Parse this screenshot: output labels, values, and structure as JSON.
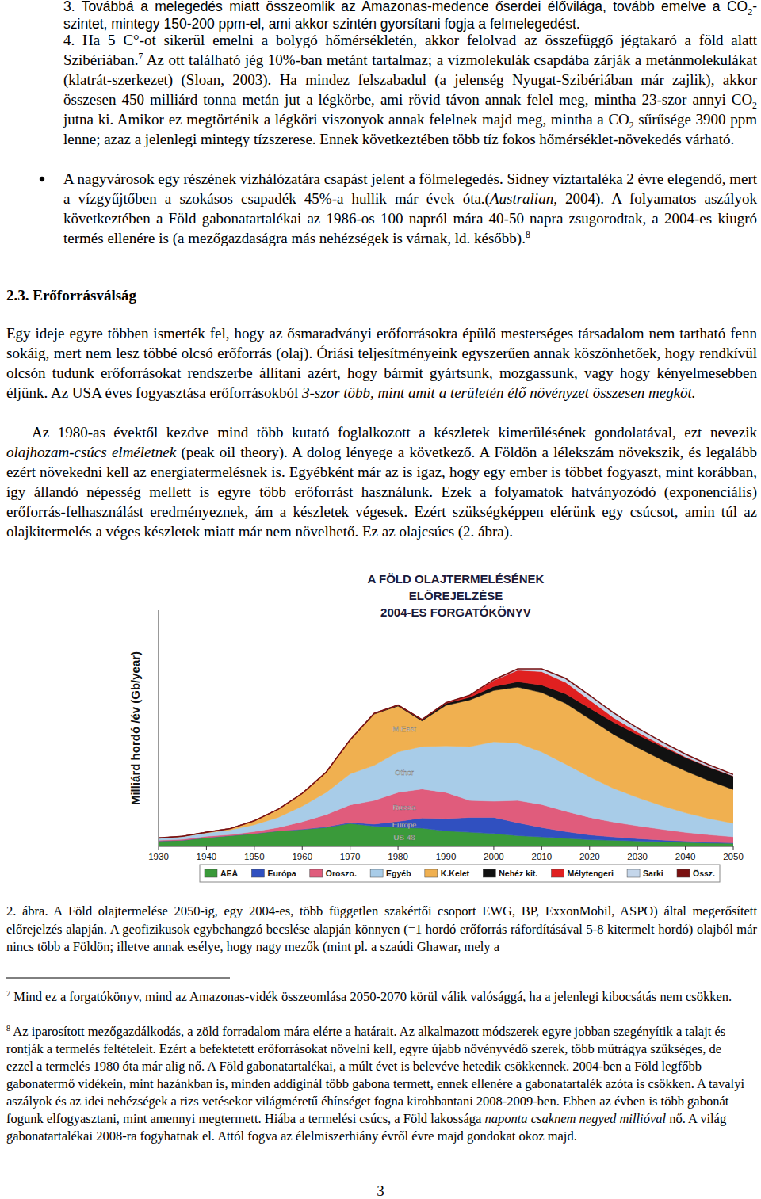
{
  "list_items": [
    {
      "runs": [
        {
          "text": "3. Továbbá a melegedés miatt összeomlik az Amazonas-medence őserdei élővilága, tovább emelve a CO"
        },
        {
          "text": "2",
          "format": "sub"
        },
        {
          "text": "-szintet, mintegy 150-200 ppm-el, ami akkor szintén gyorsítani fogja a felmelegedést."
        }
      ]
    },
    {
      "runs": [
        {
          "text": "4. Ha 5 C°-ot sikerül emelni a bolygó hőmérsékletén, akkor felolvad az összefüggő jégtakaró a föld alatt Szibériában."
        },
        {
          "text": "7",
          "format": "sup"
        },
        {
          "text": " Az ott található jég 10%-ban metánt tartalmaz; a vízmolekulák csapdába zárják a metánmolekulákat (klatrát-szerkezet) (Sloan, 2003). Ha mindez felszabadul (a jelenség Nyugat-Szibériában már zajlik), akkor összesen 450 milliárd tonna metán jut a légkörbe, ami rövid távon annak felel meg, mintha 23-szor annyi CO"
        },
        {
          "text": "2",
          "format": "sub"
        },
        {
          "text": " jutna ki. Amikor ez megtörténik a légköri viszonyok annak felelnek majd meg, mintha a CO"
        },
        {
          "text": "2",
          "format": "sub"
        },
        {
          "text": " sűrűsége 3900 ppm lenne; azaz a jelenlegi mintegy tízszerese. Ennek következtében több tíz fokos hőmérséklet-növekedés várható."
        }
      ]
    }
  ],
  "bullets": [
    {
      "runs": [
        {
          "text": "A nagyvárosok egy részének vízhálózatára csapást jelent a fölmelegedés. Sidney víztartaléka 2 évre elegendő, mert a vízgyűjtőben a szokásos csapadék 45%-a hullik már évek óta.("
        },
        {
          "text": "Australian",
          "format": "italic"
        },
        {
          "text": ", 2004). A folyamatos aszályok következtében a Föld gabonatartalékai az 1986-os 100 napról mára 40-50 napra zsugorodtak, a 2004-es kiugró termés ellenére is (a mezőgazdaságra más nehézségek is várnak, ld. később)."
        },
        {
          "text": "8",
          "format": "sup"
        }
      ]
    }
  ],
  "heading": "2.3. Erőforrásválság",
  "paragraphs": [
    {
      "runs": [
        {
          "text": "Egy ideje egyre többen ismerték fel, hogy az ősmaradványi erőforrásokra épülő mesterséges társadalom nem tartható fenn sokáig, mert nem lesz többé olcsó erőforrás (olaj). Óriási teljesítményeink egyszerűen annak köszönhetőek, hogy rendkívül olcsón tudunk erőforrásokat rendszerbe állítani azért, hogy bármit gyártsunk, mozgassunk, vagy hogy kényelmesebben éljünk. Az USA éves fogyasztása erőforrásokból "
        },
        {
          "text": "3-szor több, mint amit a területén élő növényzet összesen megköt.",
          "format": "italic"
        }
      ]
    },
    {
      "runs": [
        {
          "text": "Az 1980-as évektől kezdve mind több kutató foglalkozott a készletek kimerülésének gondolatával, ezt nevezik "
        },
        {
          "text": "olajhozam-csúcs elméletnek",
          "format": "italic"
        },
        {
          "text": " (peak oil theory). A dolog lényege a következő. A Földön a lélekszám növekszik, és legalább ezért növekedni kell az energiatermelésnek is. Egyébként már az is igaz, hogy egy ember is többet fogyaszt, mint korábban, így állandó népesség mellett is egyre több erőforrást használunk. Ezek a folyamatok hatványozódó (exponenciális) erőforrás-felhasználást eredményeznek, ám a készletek végesek. Ezért szükségképpen elérünk egy csúcsot, amin túl az olajkitermelés a véges készletek miatt már nem növelhető. Ez az olajcsúcs (2. ábra)."
        }
      ]
    }
  ],
  "chart_data": {
    "type": "area",
    "stacked": true,
    "title": "A FÖLD OLAJTERMELÉSÉNEK\nELŐREJELZÉSE\n2004-ES FORGATÓKÖNYV",
    "y_label": "Milliárd hordó /év (Gb/year)",
    "x": [
      1930,
      1935,
      1940,
      1945,
      1950,
      1955,
      1960,
      1965,
      1970,
      1975,
      1980,
      1985,
      1990,
      1995,
      2000,
      2005,
      2010,
      2015,
      2020,
      2025,
      2030,
      2035,
      2040,
      2045,
      2050
    ],
    "xlim": [
      1930,
      2050
    ],
    "xticks": [
      1930,
      1940,
      1950,
      1960,
      1970,
      1980,
      1990,
      2000,
      2010,
      2020,
      2030,
      2040,
      2050
    ],
    "ylim": [
      0,
      35
    ],
    "tick_labels": "x",
    "legend": "bottom",
    "annotations": [
      "US-48",
      "Europe",
      "Russia",
      "Other",
      "M.East"
    ],
    "series": [
      {
        "name": "AEÁ",
        "color": "#3a9a3a",
        "values": [
          0.8,
          0.9,
          1.3,
          1.6,
          1.9,
          2.3,
          2.5,
          2.8,
          3.4,
          3.0,
          2.8,
          2.7,
          2.3,
          2.1,
          1.9,
          1.6,
          1.4,
          1.2,
          1.0,
          0.9,
          0.8,
          0.7,
          0.6,
          0.5,
          0.45
        ]
      },
      {
        "name": "Európa",
        "color": "#3050c0",
        "values": [
          0,
          0,
          0,
          0,
          0,
          0,
          0.05,
          0.1,
          0.15,
          0.3,
          0.9,
          1.5,
          1.8,
          2.2,
          2.4,
          1.9,
          1.4,
          1.0,
          0.7,
          0.5,
          0.35,
          0.25,
          0.18,
          0.12,
          0.08
        ]
      },
      {
        "name": "Oroszo.",
        "color": "#e05c7c",
        "values": [
          0.1,
          0.15,
          0.2,
          0.15,
          0.3,
          0.5,
          1.1,
          1.8,
          2.6,
          3.5,
          4.3,
          4.3,
          3.9,
          2.5,
          2.4,
          3.3,
          3.4,
          3.0,
          2.6,
          2.2,
          1.9,
          1.6,
          1.3,
          1.1,
          0.9
        ]
      },
      {
        "name": "Egyéb",
        "color": "#a8cce8",
        "values": [
          0.3,
          0.4,
          0.5,
          0.7,
          1.0,
          1.5,
          2.3,
          3.3,
          4.6,
          5.2,
          6.0,
          6.3,
          6.9,
          8.0,
          8.8,
          8.5,
          7.8,
          7.0,
          6.0,
          5.0,
          4.2,
          3.5,
          2.9,
          2.4,
          2.0
        ]
      },
      {
        "name": "K.Kelet",
        "color": "#f0b050",
        "values": [
          0.05,
          0.05,
          0.1,
          0.2,
          0.6,
          1.2,
          1.9,
          3.0,
          5.0,
          7.6,
          6.8,
          3.8,
          6.0,
          6.9,
          7.6,
          8.3,
          8.8,
          9.0,
          8.6,
          8.0,
          7.4,
          6.8,
          6.2,
          5.6,
          5.0
        ]
      },
      {
        "name": "Nehéz kit.",
        "color": "#111111",
        "values": [
          0,
          0,
          0,
          0,
          0,
          0,
          0,
          0,
          0.05,
          0.1,
          0.15,
          0.2,
          0.3,
          0.4,
          0.6,
          0.8,
          1.1,
          1.4,
          1.6,
          1.8,
          1.9,
          2.0,
          2.0,
          2.0,
          2.0
        ]
      },
      {
        "name": "Mélytengeri",
        "color": "#e02020",
        "values": [
          0,
          0,
          0,
          0,
          0,
          0,
          0,
          0,
          0,
          0,
          0,
          0,
          0.1,
          0.3,
          0.9,
          1.7,
          2.0,
          1.7,
          1.2,
          0.7,
          0.4,
          0.2,
          0.1,
          0.05,
          0.02
        ]
      },
      {
        "name": "Sarki",
        "color": "#c4d6ea",
        "values": [
          0,
          0,
          0,
          0,
          0,
          0,
          0,
          0,
          0,
          0,
          0,
          0,
          0,
          0,
          0.1,
          0.2,
          0.4,
          0.6,
          0.7,
          0.7,
          0.6,
          0.5,
          0.4,
          0.3,
          0.2
        ]
      },
      {
        "name": "Össz.",
        "color": "#7a1010",
        "type": "line",
        "values": [
          1.25,
          1.5,
          2.1,
          2.65,
          3.8,
          5.5,
          7.85,
          11.0,
          15.8,
          19.7,
          20.95,
          18.8,
          21.3,
          22.4,
          24.7,
          26.3,
          26.3,
          24.9,
          22.4,
          19.8,
          17.55,
          15.55,
          13.68,
          12.07,
          10.65
        ]
      }
    ]
  },
  "caption": {
    "runs": [
      {
        "text": "2. ábra. A Föld olajtermelése 2050-ig, egy 2004-es, több független szakértői csoport EWG, BP, ExxonMobil, ASPO) által megerősített előrejelzés alapján. A geofizikusok egybehangzó becslése alapján könnyen (=1 hordó erőforrás ráfordításával 5-8 kitermelt hordó) olajból már nincs több a Földön; illetve annak esélye, hogy nagy mezők (mint pl. a szaúdi Ghawar, mely a"
      }
    ]
  },
  "footnotes": [
    {
      "number": "7",
      "runs": [
        {
          "text": " Mind ez a forgatókönyv, mind az Amazonas-vidék összeomlása 2050-2070 körül válik valósággá, ha a jelenlegi kibocsátás nem csökken."
        }
      ]
    },
    {
      "number": "8",
      "runs": [
        {
          "text": " Az iparosított mezőgazdálkodás, a zöld forradalom mára elérte a határait. Az alkalmazott módszerek egyre jobban szegényítik a talajt és rontják a termelés feltételeit. Ezért a befektetett erőforrásokat növelni kell, egyre újabb növényvédő szerek, több műtrágya szükséges, de ezzel a termelés 1980 óta már alig nő. A Föld gabonatartalékai, a múlt évet is belevéve hetedik csökkennek. 2004-ben a Föld legfőbb gabonatermő vidékein, mint hazánkban is, minden addiginál több gabona termett, ennek ellenére a gabonatartalék azóta is csökken. A tavalyi aszályok és az idei nehézségek a rizs vetésekor világméretű éhínséget fogna kirobbantani 2008-2009-ben. Ebben az évben is több gabonát fogunk elfogyasztani, mint amennyi megtermett. Hiába a termelési csúcs, a Föld lakossága "
        },
        {
          "text": "naponta csaknem negyed millióval",
          "format": "italic"
        },
        {
          "text": " nő. A világ gabonatartalékai 2008-ra fogyhatnak el. Attól fogva az élelmiszerhiány évről évre majd gondokat okoz majd."
        }
      ]
    }
  ],
  "page_number": "3"
}
